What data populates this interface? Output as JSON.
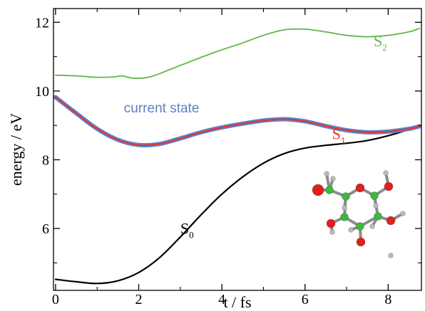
{
  "chart_data": {
    "type": "line",
    "xlabel": "t / fs",
    "ylabel": "energy / eV",
    "xlim": [
      -0.05,
      8.8
    ],
    "ylim": [
      4.2,
      12.4
    ],
    "xticks": [
      0,
      2,
      4,
      6,
      8
    ],
    "yticks": [
      6,
      8,
      10,
      12
    ],
    "grid": false,
    "series": [
      {
        "name": "S0",
        "label_main": "S",
        "label_sub": "0",
        "color": "#000000",
        "x": [
          0,
          0.5,
          1.0,
          1.5,
          2.0,
          2.5,
          3.0,
          3.5,
          4.0,
          4.5,
          5.0,
          5.5,
          6.0,
          6.5,
          7.0,
          7.5,
          8.0,
          8.5,
          8.75
        ],
        "y": [
          4.52,
          4.45,
          4.4,
          4.48,
          4.72,
          5.15,
          5.75,
          6.4,
          7.0,
          7.5,
          7.9,
          8.18,
          8.34,
          8.42,
          8.48,
          8.56,
          8.7,
          8.88,
          8.97
        ]
      },
      {
        "name": "S1",
        "label_main": "S",
        "label_sub": "1",
        "color": "#e8322c",
        "x": [
          0,
          0.5,
          1.0,
          1.5,
          2.0,
          2.5,
          3.0,
          3.5,
          4.0,
          4.5,
          5.0,
          5.5,
          6.0,
          6.5,
          7.0,
          7.5,
          8.0,
          8.5,
          8.75
        ],
        "y": [
          9.82,
          9.35,
          8.9,
          8.58,
          8.43,
          8.46,
          8.62,
          8.8,
          8.94,
          9.05,
          9.14,
          9.18,
          9.12,
          8.98,
          8.86,
          8.8,
          8.82,
          8.9,
          8.97
        ]
      },
      {
        "name": "current state",
        "color": "#5b82c9",
        "x": [
          0,
          0.5,
          1.0,
          1.5,
          2.0,
          2.5,
          3.0,
          3.5,
          4.0,
          4.5,
          5.0,
          5.5,
          6.0,
          6.5,
          7.0,
          7.5,
          8.0,
          8.5,
          8.75
        ],
        "y": [
          9.82,
          9.35,
          8.9,
          8.58,
          8.43,
          8.46,
          8.62,
          8.8,
          8.94,
          9.05,
          9.14,
          9.18,
          9.12,
          8.98,
          8.86,
          8.8,
          8.82,
          8.9,
          8.97
        ]
      },
      {
        "name": "S2",
        "label_main": "S",
        "label_sub": "2",
        "color": "#5fb84a",
        "x": [
          0,
          0.5,
          1.0,
          1.4,
          1.6,
          1.9,
          2.3,
          2.8,
          3.5,
          4.0,
          4.5,
          5.0,
          5.5,
          6.0,
          6.5,
          7.0,
          7.5,
          8.0,
          8.5,
          8.75
        ],
        "y": [
          10.46,
          10.44,
          10.4,
          10.41,
          10.44,
          10.37,
          10.42,
          10.65,
          10.98,
          11.2,
          11.4,
          11.62,
          11.78,
          11.8,
          11.72,
          11.62,
          11.58,
          11.62,
          11.72,
          11.82
        ]
      }
    ],
    "annotations": [
      {
        "text": "current state",
        "x": 2.55,
        "y": 9.38,
        "color": "#5b82c9"
      },
      {
        "main": "S",
        "sub": "0",
        "x": 3.0,
        "y": 5.85,
        "color": "#000000"
      },
      {
        "main": "S",
        "sub": "1",
        "x": 6.65,
        "y": 8.6,
        "color": "#e8322c"
      },
      {
        "main": "S",
        "sub": "2",
        "x": 7.65,
        "y": 11.3,
        "color": "#5fb84a"
      }
    ]
  },
  "molecule": {
    "colors": {
      "carbon": "#3cb83c",
      "oxygen": "#e0201c",
      "hydrogen": "#b9b9b9",
      "bond": "#8c8c8c"
    }
  }
}
